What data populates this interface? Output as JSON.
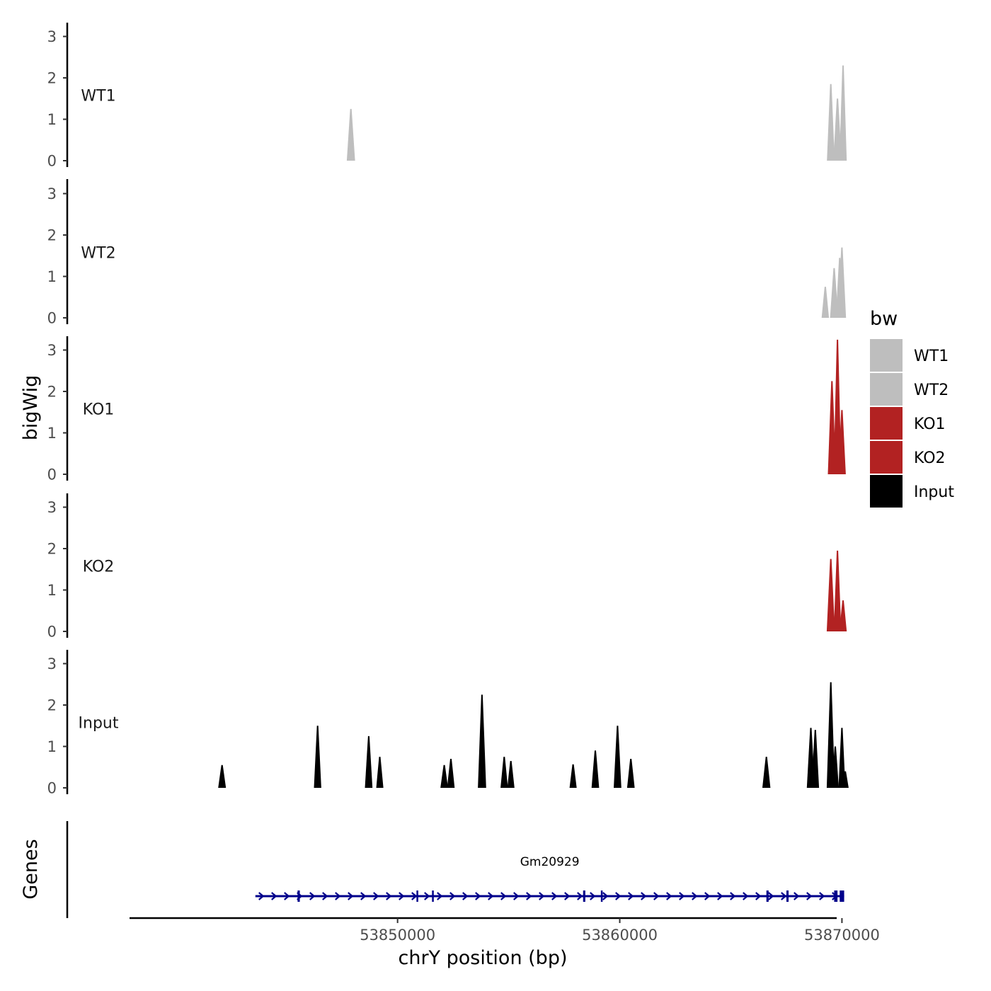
{
  "chart_data": {
    "type": "area",
    "ylabel": "bigWig",
    "xlabel": "chrY position (bp)",
    "ylim": [
      0,
      3.3
    ],
    "y_ticks": [
      "0",
      "1",
      "2",
      "3"
    ],
    "xlim": [
      53838000,
      53869700
    ],
    "x_ticks": [
      {
        "value": 53850000,
        "label": "53850000"
      },
      {
        "value": 53860000,
        "label": "53860000"
      },
      {
        "value": 53870000,
        "label": "53870000"
      }
    ],
    "legend": {
      "title": "bw",
      "position": "right",
      "entries": [
        {
          "label": "WT1",
          "color": "#bebebe"
        },
        {
          "label": "WT2",
          "color": "#bebebe"
        },
        {
          "label": "KO1",
          "color": "#b22222"
        },
        {
          "label": "KO2",
          "color": "#b22222"
        },
        {
          "label": "Input",
          "color": "#000000"
        }
      ]
    },
    "tracks": [
      {
        "name": "WT1",
        "color": "#bebebe",
        "peaks": [
          {
            "x": 53847900,
            "y": 1.25,
            "w": 180
          },
          {
            "x": 53869500,
            "y": 1.85,
            "w": 160
          },
          {
            "x": 53869800,
            "y": 1.5,
            "w": 180
          },
          {
            "x": 53870050,
            "y": 2.3,
            "w": 140
          }
        ]
      },
      {
        "name": "WT2",
        "color": "#bebebe",
        "peaks": [
          {
            "x": 53869250,
            "y": 0.75,
            "w": 140
          },
          {
            "x": 53869650,
            "y": 1.2,
            "w": 180
          },
          {
            "x": 53869900,
            "y": 1.45,
            "w": 160
          },
          {
            "x": 53870000,
            "y": 1.7,
            "w": 180
          }
        ]
      },
      {
        "name": "KO1",
        "color": "#b22222",
        "peaks": [
          {
            "x": 53869550,
            "y": 2.25,
            "w": 180
          },
          {
            "x": 53869800,
            "y": 3.25,
            "w": 160
          },
          {
            "x": 53870000,
            "y": 1.55,
            "w": 160
          }
        ]
      },
      {
        "name": "KO2",
        "color": "#b22222",
        "peaks": [
          {
            "x": 53869500,
            "y": 1.75,
            "w": 180
          },
          {
            "x": 53869800,
            "y": 1.95,
            "w": 150
          },
          {
            "x": 53870050,
            "y": 0.75,
            "w": 140
          }
        ]
      },
      {
        "name": "Input",
        "color": "#000000",
        "peaks": [
          {
            "x": 53842100,
            "y": 0.55,
            "w": 160
          },
          {
            "x": 53846400,
            "y": 1.5,
            "w": 140
          },
          {
            "x": 53848700,
            "y": 1.25,
            "w": 150
          },
          {
            "x": 53849200,
            "y": 0.75,
            "w": 130
          },
          {
            "x": 53852100,
            "y": 0.55,
            "w": 150
          },
          {
            "x": 53852400,
            "y": 0.7,
            "w": 150
          },
          {
            "x": 53853800,
            "y": 2.25,
            "w": 180
          },
          {
            "x": 53854800,
            "y": 0.75,
            "w": 140
          },
          {
            "x": 53855100,
            "y": 0.65,
            "w": 130
          },
          {
            "x": 53857900,
            "y": 0.57,
            "w": 130
          },
          {
            "x": 53858900,
            "y": 0.9,
            "w": 150
          },
          {
            "x": 53859900,
            "y": 1.5,
            "w": 150
          },
          {
            "x": 53860500,
            "y": 0.7,
            "w": 150
          },
          {
            "x": 53866600,
            "y": 0.75,
            "w": 170
          },
          {
            "x": 53868600,
            "y": 1.45,
            "w": 170
          },
          {
            "x": 53868800,
            "y": 1.4,
            "w": 150
          },
          {
            "x": 53869500,
            "y": 2.55,
            "w": 180
          },
          {
            "x": 53869700,
            "y": 1.0,
            "w": 130
          },
          {
            "x": 53870000,
            "y": 1.45,
            "w": 120
          },
          {
            "x": 53870150,
            "y": 0.4,
            "w": 110
          }
        ]
      }
    ],
    "genes": {
      "label": "Genes",
      "color": "#00008b",
      "items": [
        {
          "name": "Gm20929",
          "start": 53843600,
          "end": 53870100,
          "strand": "+",
          "exons": [
            [
              53845500,
              53845600
            ],
            [
              53850850,
              53850900
            ],
            [
              53851550,
              53851600
            ],
            [
              53858350,
              53858450
            ],
            [
              53859150,
              53859200
            ],
            [
              53866600,
              53866700
            ],
            [
              53867500,
              53867600
            ],
            [
              53869650,
              53869800
            ],
            [
              53869900,
              53870100
            ]
          ]
        }
      ]
    }
  }
}
